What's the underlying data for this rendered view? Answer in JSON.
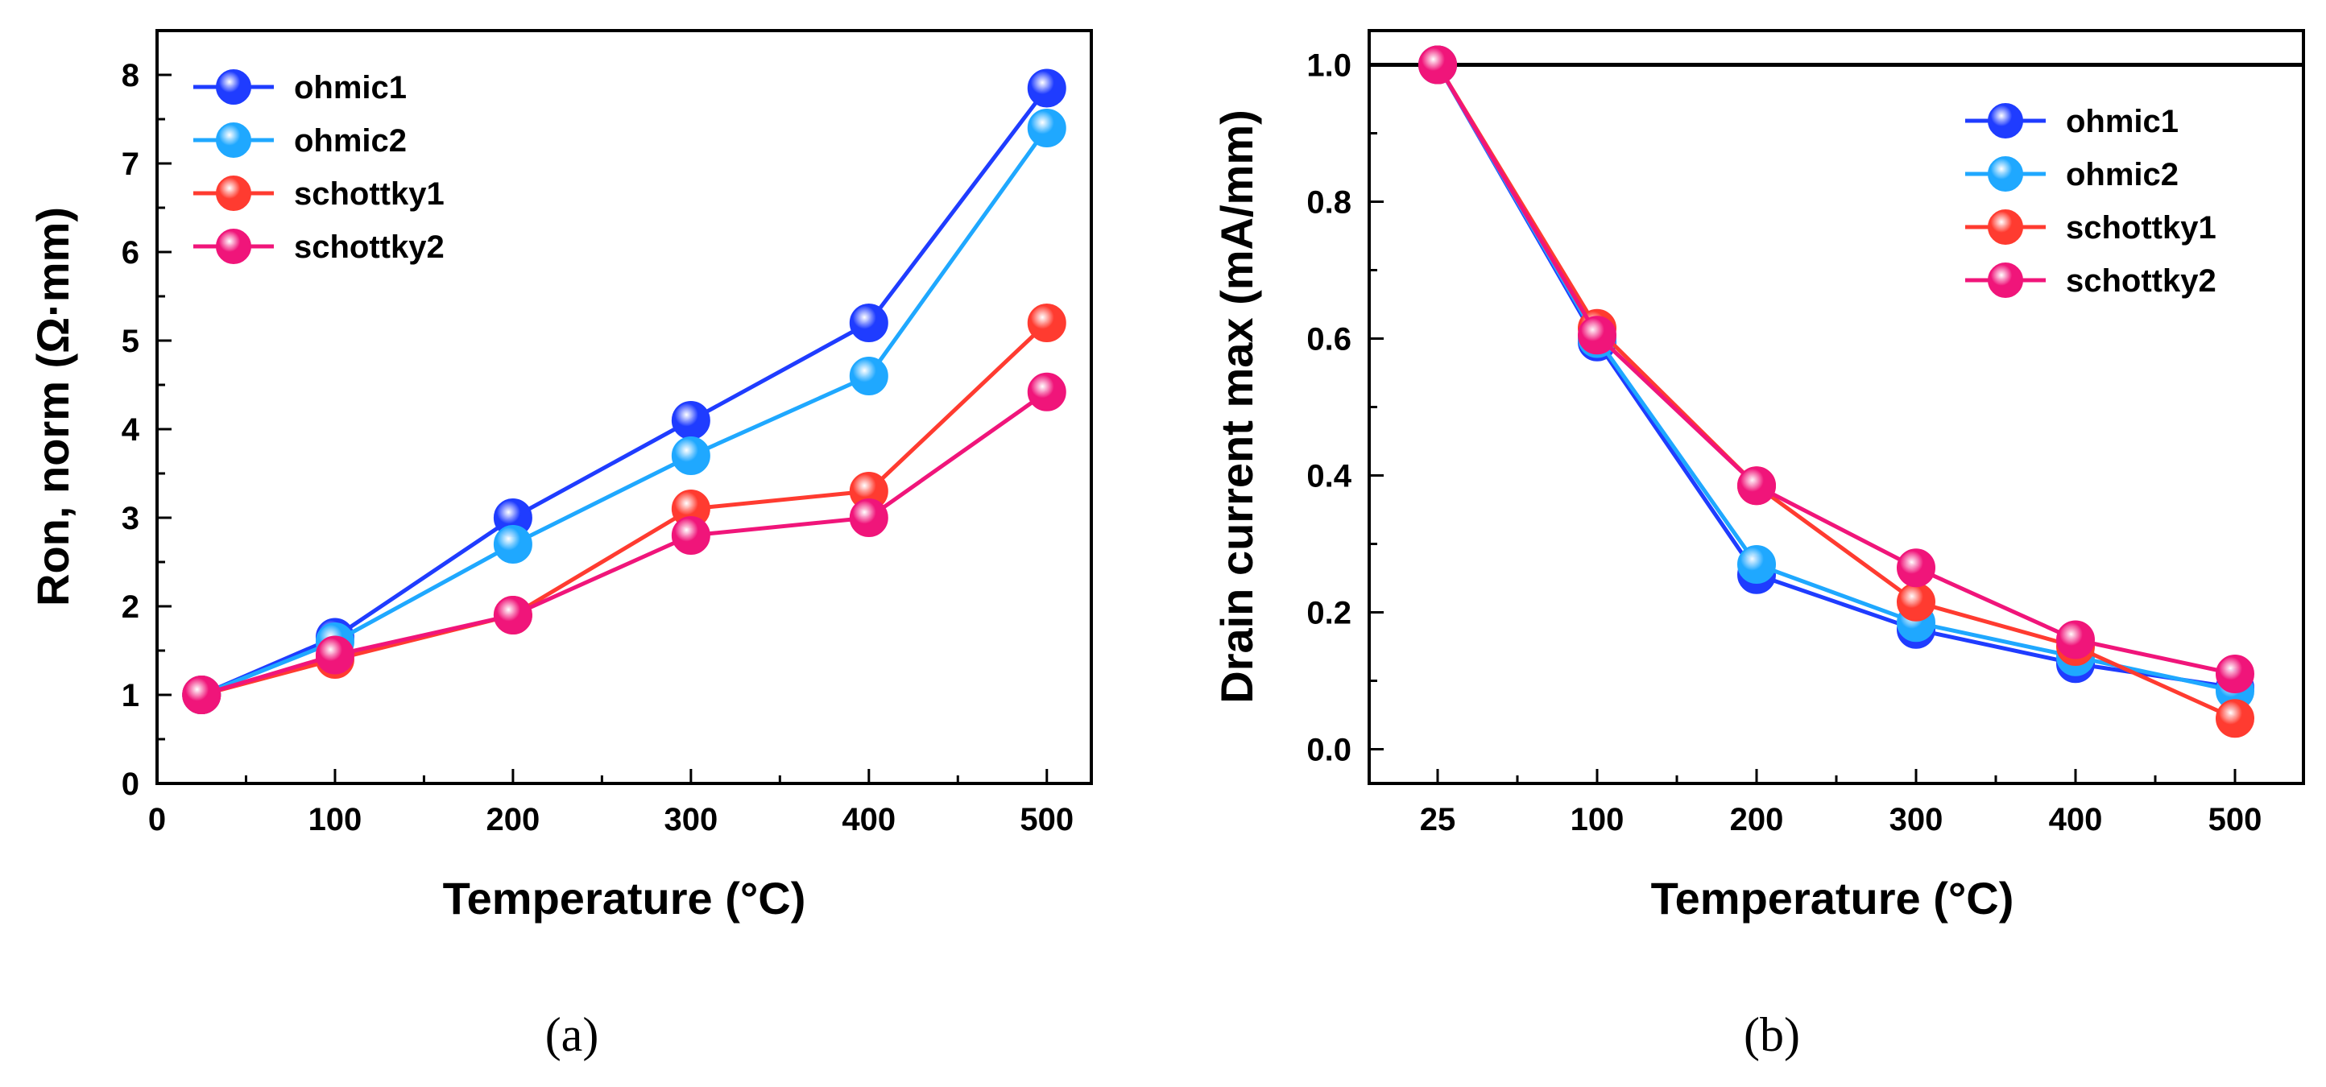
{
  "chart_data": [
    {
      "panel": "(a)",
      "type": "line",
      "xlabel": "Temperature (°C)",
      "ylabel": "Ron, norm (Ω·mm)",
      "xlim": [
        0,
        525
      ],
      "ylim": [
        0,
        8.5
      ],
      "xticks": [
        0,
        100,
        200,
        300,
        400,
        500
      ],
      "yticks": [
        0,
        1,
        2,
        3,
        4,
        5,
        6,
        7,
        8
      ],
      "legend_position": "top-left",
      "x": [
        25,
        100,
        200,
        300,
        400,
        500
      ],
      "series": [
        {
          "name": "ohmic1",
          "color": "#1f3cff",
          "values": [
            1.0,
            1.65,
            3.0,
            4.1,
            5.2,
            7.85
          ]
        },
        {
          "name": "ohmic2",
          "color": "#1fa8ff",
          "values": [
            1.0,
            1.6,
            2.7,
            3.7,
            4.6,
            7.4
          ]
        },
        {
          "name": "schottky1",
          "color": "#ff3b30",
          "values": [
            1.0,
            1.4,
            1.9,
            3.1,
            3.3,
            5.2
          ]
        },
        {
          "name": "schottky2",
          "color": "#f0157a",
          "values": [
            1.0,
            1.45,
            1.9,
            2.8,
            3.0,
            4.42
          ]
        }
      ]
    },
    {
      "panel": "(b)",
      "type": "line",
      "xlabel": "Temperature (°C)",
      "ylabel": "Drain current max (mA/mm)",
      "ylim": [
        -0.05,
        1.05
      ],
      "yticks": [
        0.0,
        0.2,
        0.4,
        0.6,
        0.8,
        1.0
      ],
      "reference_line": 1.0,
      "legend_position": "top-right",
      "categories": [
        "25",
        "100",
        "200",
        "300",
        "400",
        "500"
      ],
      "series": [
        {
          "name": "ohmic1",
          "color": "#1f3cff",
          "values": [
            1.0,
            0.595,
            0.255,
            0.175,
            0.125,
            0.09
          ]
        },
        {
          "name": "ohmic2",
          "color": "#1fa8ff",
          "values": [
            1.0,
            0.6,
            0.27,
            0.185,
            0.135,
            0.085
          ]
        },
        {
          "name": "schottky1",
          "color": "#ff3b30",
          "values": [
            1.0,
            0.615,
            0.385,
            0.215,
            0.15,
            0.045
          ]
        },
        {
          "name": "schottky2",
          "color": "#f0157a",
          "values": [
            1.0,
            0.605,
            0.385,
            0.265,
            0.16,
            0.11
          ]
        }
      ]
    }
  ]
}
